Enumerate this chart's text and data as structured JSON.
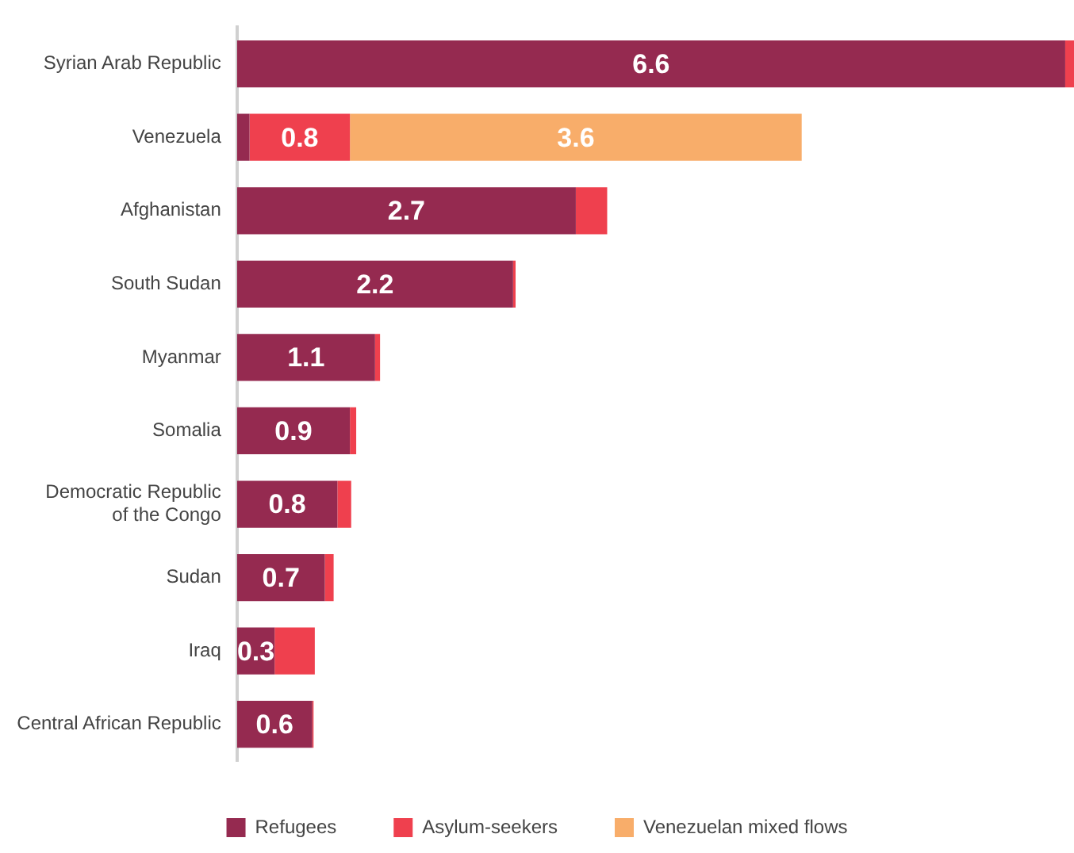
{
  "chart_data": {
    "type": "bar",
    "orientation": "horizontal",
    "stacked": true,
    "legend": "bottom",
    "grid": false,
    "categories": [
      "Syrian Arab Republic",
      "Venezuela",
      "Afghanistan",
      "South Sudan",
      "Myanmar",
      "Somalia",
      "Democratic Republic\nof the Congo",
      "Sudan",
      "Iraq",
      "Central African Republic"
    ],
    "series": [
      {
        "name": "Refugees",
        "color": "#952a50",
        "values": [
          6.6,
          0.1,
          2.7,
          2.2,
          1.1,
          0.9,
          0.8,
          0.7,
          0.3,
          0.6
        ],
        "value_labels": [
          "6.6",
          null,
          "2.7",
          "2.2",
          "1.1",
          "0.9",
          "0.8",
          "0.7",
          "0.3",
          "0.6"
        ]
      },
      {
        "name": "Asylum-seekers",
        "color": "#ef404e",
        "values": [
          0.07,
          0.8,
          0.25,
          0.02,
          0.04,
          0.05,
          0.11,
          0.07,
          0.32,
          0.01
        ],
        "value_labels": [
          null,
          "0.8",
          null,
          null,
          null,
          null,
          null,
          null,
          null,
          null
        ]
      },
      {
        "name": "Venezuelan mixed flows",
        "color": "#f8ad6a",
        "values": [
          null,
          3.6,
          null,
          null,
          null,
          null,
          null,
          null,
          null,
          null
        ],
        "value_labels": [
          null,
          "3.6",
          null,
          null,
          null,
          null,
          null,
          null,
          null,
          null
        ]
      }
    ]
  }
}
